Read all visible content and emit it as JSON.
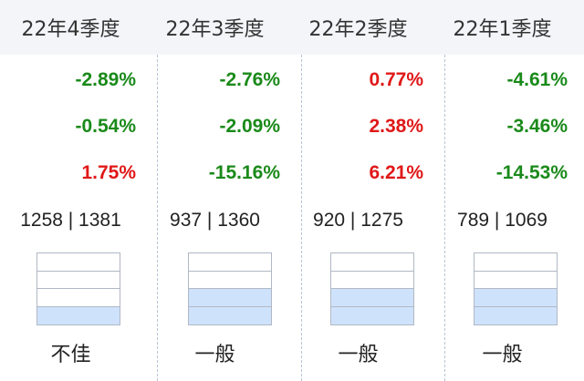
{
  "columns": [
    {
      "title": "22年4季度",
      "values": [
        {
          "text": "-2.89%",
          "sign": "neg"
        },
        {
          "text": "-0.54%",
          "sign": "neg"
        },
        {
          "text": "1.75%",
          "sign": "pos"
        }
      ],
      "rank": "1258 | 1381",
      "quartile_level": 1,
      "rating": "不佳"
    },
    {
      "title": "22年3季度",
      "values": [
        {
          "text": "-2.76%",
          "sign": "neg"
        },
        {
          "text": "-2.09%",
          "sign": "neg"
        },
        {
          "text": "-15.16%",
          "sign": "neg"
        }
      ],
      "rank": "937 | 1360",
      "quartile_level": 2,
      "rating": "一般"
    },
    {
      "title": "22年2季度",
      "values": [
        {
          "text": "0.77%",
          "sign": "pos"
        },
        {
          "text": "2.38%",
          "sign": "pos"
        },
        {
          "text": "6.21%",
          "sign": "pos"
        }
      ],
      "rank": "920 | 1275",
      "quartile_level": 2,
      "rating": "一般"
    },
    {
      "title": "22年1季度",
      "values": [
        {
          "text": "-4.61%",
          "sign": "neg"
        },
        {
          "text": "-3.46%",
          "sign": "neg"
        },
        {
          "text": "-14.53%",
          "sign": "neg"
        }
      ],
      "rank": "789 | 1069",
      "quartile_level": 2,
      "rating": "一般"
    }
  ],
  "colors": {
    "negative": "#1a8a1a",
    "positive": "#e01818",
    "gauge_fill": "#cfe2fb",
    "header_bg": "#f3f5f8"
  }
}
